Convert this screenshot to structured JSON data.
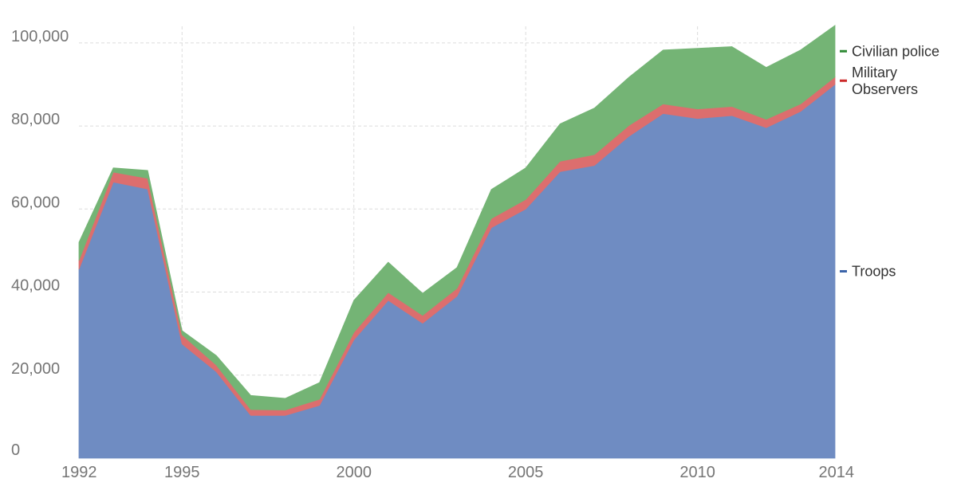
{
  "chart_data": {
    "type": "area",
    "stacked": true,
    "x": [
      1992,
      1993,
      1994,
      1995,
      1996,
      1997,
      1998,
      1999,
      2000,
      2001,
      2002,
      2003,
      2004,
      2005,
      2006,
      2007,
      2008,
      2009,
      2010,
      2011,
      2012,
      2013,
      2014
    ],
    "series": [
      {
        "name": "Troops",
        "color": "#6f8cc2",
        "values": [
          45500,
          66500,
          64800,
          27500,
          20800,
          10300,
          10300,
          12700,
          28500,
          38000,
          32500,
          39000,
          55500,
          60000,
          69000,
          70500,
          77500,
          83000,
          81800,
          82500,
          79600,
          83500,
          90000
        ]
      },
      {
        "name": "Military Observers",
        "color": "#dc6e6e",
        "values": [
          2100,
          2400,
          2600,
          2200,
          1600,
          1400,
          1300,
          1500,
          1800,
          1900,
          1900,
          1900,
          2200,
          2300,
          2500,
          2600,
          2600,
          2300,
          2300,
          2200,
          2000,
          1800,
          1800
        ]
      },
      {
        "name": "Civilian police",
        "color": "#74b475",
        "values": [
          4400,
          1000,
          1900,
          1000,
          2300,
          3400,
          2800,
          4000,
          7700,
          7300,
          5300,
          5000,
          7000,
          7600,
          9000,
          11200,
          11600,
          13000,
          14600,
          14400,
          12500,
          13000,
          12400
        ]
      }
    ],
    "xticks": [
      "1992",
      "1995",
      "2000",
      "2005",
      "2010",
      "2014"
    ],
    "yticks": [
      "0",
      "20,000",
      "40,000",
      "60,000",
      "80,000",
      "100,000"
    ],
    "xlim": [
      1992,
      2014
    ],
    "ylim": [
      0,
      104000
    ],
    "grid": true,
    "legend_position": "right",
    "title": "",
    "xlabel": "",
    "ylabel": ""
  }
}
